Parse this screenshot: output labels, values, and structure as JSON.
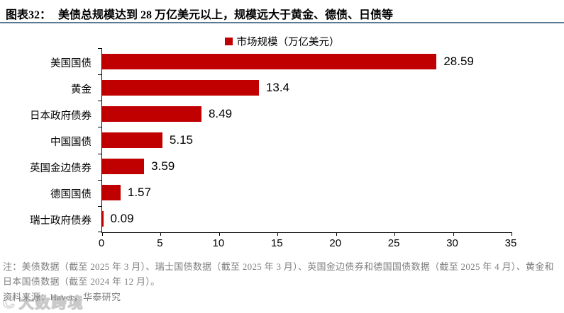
{
  "header": {
    "figure_label": "图表32：",
    "title": "美债总规模达到 28 万亿美元以上，规模远大于黄金、德债、日债等",
    "rule_color": "#5B7B95"
  },
  "chart_data": {
    "type": "bar",
    "orientation": "horizontal",
    "legend": [
      "市场规模（万亿美元）"
    ],
    "legend_position": "top-center",
    "categories": [
      "美国国债",
      "黄金",
      "日本政府债券",
      "中国国债",
      "英国金边债券",
      "德国国债",
      "瑞士政府债券"
    ],
    "values": [
      28.59,
      13.4,
      8.49,
      5.15,
      3.59,
      1.57,
      0.09
    ],
    "value_labels": [
      "28.59",
      "13.4",
      "8.49",
      "5.15",
      "3.59",
      "1.57",
      "0.09"
    ],
    "xlim": [
      0,
      35
    ],
    "x_ticks": [
      0,
      5,
      10,
      15,
      20,
      25,
      30,
      35
    ],
    "grid": false,
    "bar_color": "#C00000"
  },
  "footer": {
    "note": "注：美债数据（截至 2025 年 3 月）、瑞士国债数据（截至 2025 年 3 月）、英国金边债券和德国国债数据（截至 2025 年 4 月）、黄金和日本国债数据（截至 2024 年 12 月）。",
    "source": "资料来源：Haver，华泰研究"
  },
  "watermark": {
    "text": "大数跨境"
  }
}
